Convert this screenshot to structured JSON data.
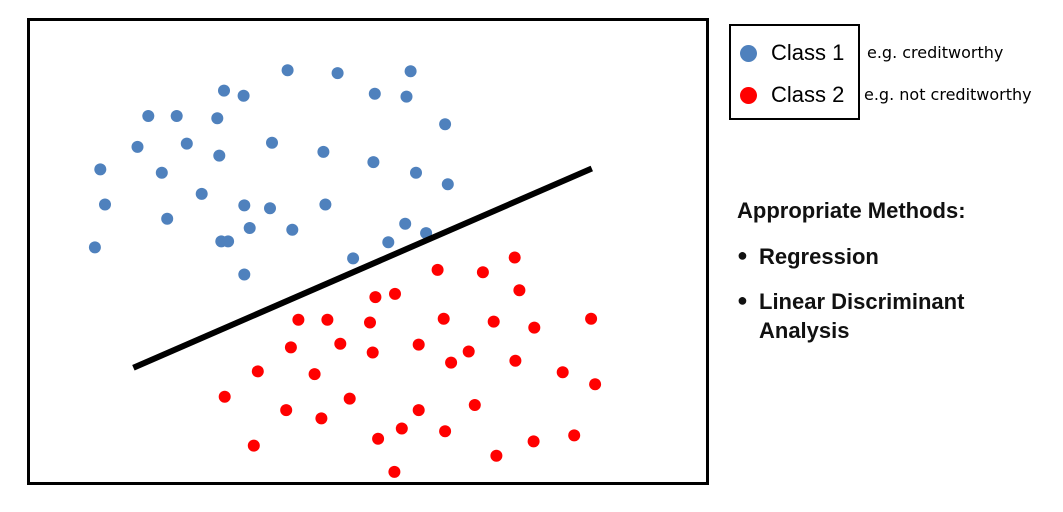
{
  "chart_data": {
    "type": "scatter",
    "title": "",
    "xlabel": "",
    "ylabel": "",
    "xlim": [
      0,
      100
    ],
    "ylim": [
      0,
      100
    ],
    "grid": false,
    "axes_visible": false,
    "legend_placement": "right",
    "series": [
      {
        "name": "Class 1",
        "color": "#4F81BD",
        "points": [
          [
            38.1,
            89.3
          ],
          [
            45.5,
            88.7
          ],
          [
            56.3,
            89.1
          ],
          [
            51.0,
            84.2
          ],
          [
            28.7,
            84.9
          ],
          [
            31.6,
            83.8
          ],
          [
            17.5,
            79.4
          ],
          [
            21.7,
            79.4
          ],
          [
            27.7,
            78.9
          ],
          [
            61.4,
            77.6
          ],
          [
            55.7,
            83.6
          ],
          [
            15.9,
            72.7
          ],
          [
            23.2,
            73.4
          ],
          [
            35.8,
            73.6
          ],
          [
            43.4,
            71.6
          ],
          [
            28.0,
            70.8
          ],
          [
            50.8,
            69.4
          ],
          [
            10.4,
            67.8
          ],
          [
            19.5,
            67.1
          ],
          [
            57.1,
            67.1
          ],
          [
            61.8,
            64.6
          ],
          [
            25.4,
            62.5
          ],
          [
            11.1,
            60.2
          ],
          [
            31.7,
            60.0
          ],
          [
            35.5,
            59.4
          ],
          [
            43.7,
            60.2
          ],
          [
            20.3,
            57.1
          ],
          [
            32.5,
            55.1
          ],
          [
            38.8,
            54.7
          ],
          [
            55.5,
            56.0
          ],
          [
            58.6,
            54.0
          ],
          [
            9.6,
            50.9
          ],
          [
            28.3,
            52.2
          ],
          [
            29.3,
            52.2
          ],
          [
            53.0,
            52.0
          ],
          [
            47.8,
            48.5
          ],
          [
            31.7,
            45.0
          ]
        ]
      },
      {
        "name": "Class 2",
        "color": "#FF0000",
        "points": [
          [
            71.7,
            48.7
          ],
          [
            60.3,
            46.0
          ],
          [
            67.0,
            45.5
          ],
          [
            72.4,
            41.6
          ],
          [
            54.0,
            40.8
          ],
          [
            51.1,
            40.1
          ],
          [
            39.7,
            35.2
          ],
          [
            44.0,
            35.2
          ],
          [
            50.3,
            34.6
          ],
          [
            61.2,
            35.4
          ],
          [
            68.6,
            34.8
          ],
          [
            74.6,
            33.5
          ],
          [
            83.0,
            35.4
          ],
          [
            45.9,
            30.0
          ],
          [
            38.6,
            29.2
          ],
          [
            57.5,
            29.8
          ],
          [
            50.7,
            28.1
          ],
          [
            64.9,
            28.3
          ],
          [
            71.8,
            26.3
          ],
          [
            62.3,
            25.9
          ],
          [
            33.7,
            24.0
          ],
          [
            42.1,
            23.4
          ],
          [
            78.8,
            23.8
          ],
          [
            83.6,
            21.2
          ],
          [
            28.8,
            18.5
          ],
          [
            47.3,
            18.1
          ],
          [
            37.9,
            15.6
          ],
          [
            57.5,
            15.6
          ],
          [
            65.8,
            16.7
          ],
          [
            43.1,
            13.8
          ],
          [
            55.0,
            11.6
          ],
          [
            61.4,
            11.0
          ],
          [
            51.5,
            9.4
          ],
          [
            80.5,
            10.1
          ],
          [
            33.1,
            7.9
          ],
          [
            74.5,
            8.8
          ],
          [
            69.0,
            5.7
          ],
          [
            53.9,
            2.2
          ]
        ]
      }
    ],
    "decision_boundary": {
      "color": "#000000",
      "points": [
        [
          15.3,
          24.8
        ],
        [
          83.1,
          68.0
        ]
      ]
    }
  },
  "legend": {
    "items": [
      {
        "label": "Class 1",
        "note": "e.g. creditworthy",
        "color": "#4F81BD"
      },
      {
        "label": "Class 2",
        "note": "e.g. not creditworthy",
        "color": "#FF0000"
      }
    ]
  },
  "methods": {
    "heading": "Appropriate Methods:",
    "items": [
      "Regression",
      "Linear Discriminant Analysis"
    ]
  }
}
